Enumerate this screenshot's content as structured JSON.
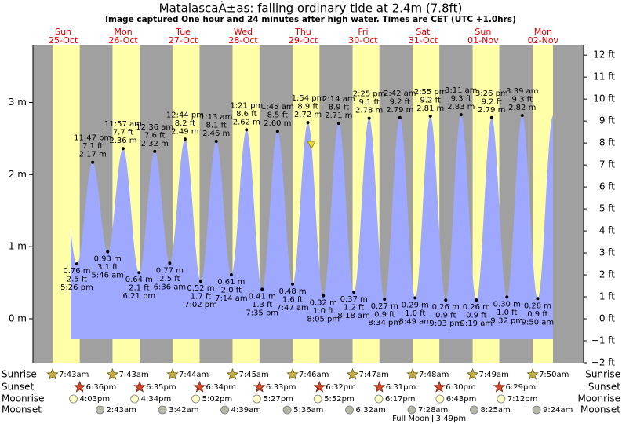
{
  "chart_data": {
    "type": "tide",
    "title": "MatalascaÃ±as: falling  ordinary tide at 2.4m (7.8ft)",
    "subtitle": "Image captured One hour and 24 minutes after high water. Times are CET (UTC +1.0hrs)",
    "ylim": [
      -0.61,
      3.8
    ],
    "yticks": [
      {
        "value": 0,
        "label": "0 m"
      },
      {
        "value": 1,
        "label": "1 m"
      },
      {
        "value": 2,
        "label": "2 m"
      },
      {
        "value": 3,
        "label": "3 m"
      }
    ],
    "y2lim": [
      -2,
      12.47
    ],
    "y2ticks": [
      {
        "value": -2,
        "label": "−2 ft"
      },
      {
        "value": -1,
        "label": "−1 ft"
      },
      {
        "value": 0,
        "label": "0 ft"
      },
      {
        "value": 1,
        "label": "1 ft"
      },
      {
        "value": 2,
        "label": "2 ft"
      },
      {
        "value": 3,
        "label": "3 ft"
      },
      {
        "value": 4,
        "label": "4 ft"
      },
      {
        "value": 5,
        "label": "5 ft"
      },
      {
        "value": 6,
        "label": "6 ft"
      },
      {
        "value": 7,
        "label": "7 ft"
      },
      {
        "value": 8,
        "label": "8 ft"
      },
      {
        "value": 9,
        "label": "9 ft"
      },
      {
        "value": 10,
        "label": "10 ft"
      },
      {
        "value": 11,
        "label": "11 ft"
      },
      {
        "value": 12,
        "label": "12 ft"
      }
    ],
    "row_labels": [
      "Sunrise",
      "Sunset",
      "Moonrise",
      "Moonset"
    ],
    "colors": {
      "water": "#9fa8ff",
      "night": "#a0a0a0",
      "day": "#ffffa8"
    },
    "days": [
      {
        "weekday": "Sun",
        "date": "25-Oct",
        "sunrise": "7:43am",
        "sunset": "6:36pm",
        "moonrise": "4:03pm",
        "tides": [
          {
            "time": "5:26 pm",
            "m": 0.76,
            "m_label": "0.76 m",
            "ft_label": "2.5 ft"
          },
          {
            "time": "11:47 pm",
            "m": 2.17,
            "m_label": "2.17 m",
            "ft_label": "7.1 ft"
          }
        ]
      },
      {
        "weekday": "Mon",
        "date": "26-Oct",
        "sunrise": "7:43am",
        "sunset": "6:35pm",
        "moonrise": "4:34pm",
        "moonset": "2:43am",
        "tides": [
          {
            "time": "5:46 am",
            "m": 0.93,
            "m_label": "0.93 m",
            "ft_label": "3.1 ft"
          },
          {
            "time": "11:57 am",
            "m": 2.36,
            "m_label": "2.36 m",
            "ft_label": "7.7 ft"
          },
          {
            "time": "6:21 pm",
            "m": 0.64,
            "m_label": "0.64 m",
            "ft_label": "2.1 ft"
          }
        ]
      },
      {
        "weekday": "Tue",
        "date": "27-Oct",
        "sunrise": "7:44am",
        "sunset": "6:34pm",
        "moonrise": "5:02pm",
        "moonset": "3:42am",
        "tides": [
          {
            "time": "12:36 am",
            "m": 2.32,
            "m_label": "2.32 m",
            "ft_label": "7.6 ft"
          },
          {
            "time": "6:36 am",
            "m": 0.77,
            "m_label": "0.77 m",
            "ft_label": "2.5 ft"
          },
          {
            "time": "12:44 pm",
            "m": 2.49,
            "m_label": "2.49 m",
            "ft_label": "8.2 ft"
          },
          {
            "time": "7:02 pm",
            "m": 0.52,
            "m_label": "0.52 m",
            "ft_label": "1.7 ft"
          }
        ]
      },
      {
        "weekday": "Wed",
        "date": "28-Oct",
        "sunrise": "7:45am",
        "sunset": "6:33pm",
        "moonrise": "5:27pm",
        "moonset": "4:39am",
        "tides": [
          {
            "time": "1:13 am",
            "m": 2.46,
            "m_label": "2.46 m",
            "ft_label": "8.1 ft"
          },
          {
            "time": "7:14 am",
            "m": 0.61,
            "m_label": "0.61 m",
            "ft_label": "2.0 ft"
          },
          {
            "time": "1:21 pm",
            "m": 2.62,
            "m_label": "2.62 m",
            "ft_label": "8.6 ft"
          },
          {
            "time": "7:35 pm",
            "m": 0.41,
            "m_label": "0.41 m",
            "ft_label": "1.3 ft"
          }
        ]
      },
      {
        "weekday": "Thu",
        "date": "29-Oct",
        "sunrise": "7:46am",
        "sunset": "6:32pm",
        "moonrise": "5:52pm",
        "moonset": "5:36am",
        "tides": [
          {
            "time": "1:45 am",
            "m": 2.6,
            "m_label": "2.60 m",
            "ft_label": "8.5 ft"
          },
          {
            "time": "7:47 am",
            "m": 0.48,
            "m_label": "0.48 m",
            "ft_label": "1.6 ft"
          },
          {
            "time": "1:54 pm",
            "m": 2.72,
            "m_label": "2.72 m",
            "ft_label": "8.9 ft"
          },
          {
            "time": "8:05 pm",
            "m": 0.32,
            "m_label": "0.32 m",
            "ft_label": "1.0 ft"
          }
        ]
      },
      {
        "weekday": "Fri",
        "date": "30-Oct",
        "sunrise": "7:47am",
        "sunset": "6:31pm",
        "moonrise": "6:17pm",
        "moonset": "6:32am",
        "tides": [
          {
            "time": "2:14 am",
            "m": 2.71,
            "m_label": "2.71 m",
            "ft_label": "8.9 ft"
          },
          {
            "time": "8:18 am",
            "m": 0.37,
            "m_label": "0.37 m",
            "ft_label": "1.2 ft"
          },
          {
            "time": "2:25 pm",
            "m": 2.78,
            "m_label": "2.78 m",
            "ft_label": "9.1 ft"
          },
          {
            "time": "8:34 pm",
            "m": 0.27,
            "m_label": "0.27 m",
            "ft_label": "0.9 ft"
          }
        ]
      },
      {
        "weekday": "Sat",
        "date": "31-Oct",
        "sunrise": "7:48am",
        "sunset": "6:30pm",
        "moonrise": "6:43pm",
        "moonset": "7:28am",
        "full_moon": {
          "label": "Full Moon",
          "time": "3:49pm"
        },
        "tides": [
          {
            "time": "2:42 am",
            "m": 2.79,
            "m_label": "2.79 m",
            "ft_label": "9.2 ft"
          },
          {
            "time": "8:49 am",
            "m": 0.29,
            "m_label": "0.29 m",
            "ft_label": "1.0 ft"
          },
          {
            "time": "2:55 pm",
            "m": 2.81,
            "m_label": "2.81 m",
            "ft_label": "9.2 ft"
          },
          {
            "time": "9:03 pm",
            "m": 0.26,
            "m_label": "0.26 m",
            "ft_label": "0.9 ft"
          }
        ]
      },
      {
        "weekday": "Sun",
        "date": "01-Nov",
        "sunrise": "7:49am",
        "sunset": "6:29pm",
        "moonrise": "7:12pm",
        "moonset": "8:25am",
        "tides": [
          {
            "time": "3:11 am",
            "m": 2.83,
            "m_label": "2.83 m",
            "ft_label": "9.3 ft"
          },
          {
            "time": "9:19 am",
            "m": 0.26,
            "m_label": "0.26 m",
            "ft_label": "0.9 ft"
          },
          {
            "time": "3:26 pm",
            "m": 2.79,
            "m_label": "2.79 m",
            "ft_label": "9.2 ft"
          },
          {
            "time": "9:32 pm",
            "m": 0.3,
            "m_label": "0.30 m",
            "ft_label": "1.0 ft"
          }
        ]
      },
      {
        "weekday": "Mon",
        "date": "02-Nov",
        "sunrise": "7:50am",
        "moonset": "9:24am",
        "tides": [
          {
            "time": "3:39 am",
            "m": 2.82,
            "m_label": "2.82 m",
            "ft_label": "9.3 ft"
          },
          {
            "time": "9:50 am",
            "m": 0.28,
            "m_label": "0.28 m",
            "ft_label": "0.9 ft"
          }
        ]
      }
    ]
  }
}
